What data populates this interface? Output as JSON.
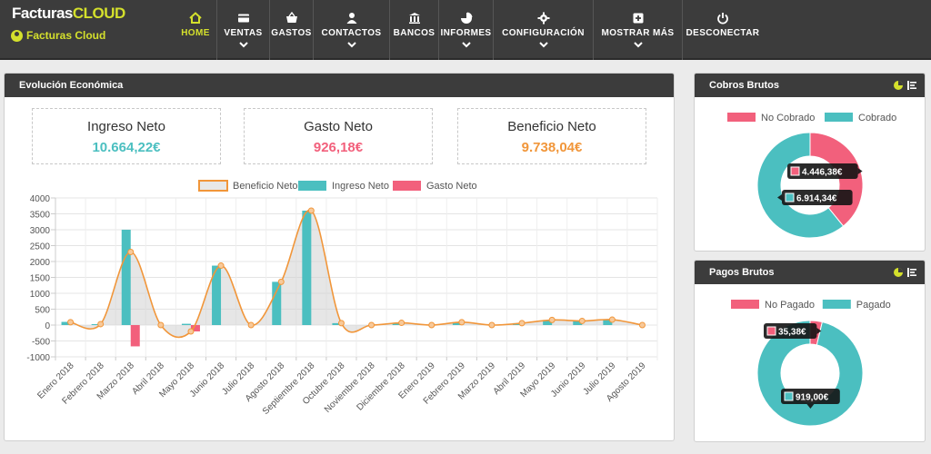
{
  "app": {
    "brand_main": "Facturas",
    "brand_accent": "CLOUD",
    "user_name": "Facturas Cloud"
  },
  "nav": [
    {
      "label": "HOME",
      "icon": "home-icon",
      "active": true,
      "chevron": false
    },
    {
      "label": "VENTAS",
      "icon": "credit-card-icon",
      "chevron": true
    },
    {
      "label": "GASTOS",
      "icon": "basket-icon",
      "chevron": false
    },
    {
      "label": "CONTACTOS",
      "icon": "user-icon",
      "chevron": true
    },
    {
      "label": "BANCOS",
      "icon": "bank-icon",
      "chevron": false
    },
    {
      "label": "INFORMES",
      "icon": "pie-chart-icon",
      "chevron": true
    },
    {
      "label": "CONFIGURACIÓN",
      "icon": "gear-icon",
      "chevron": true
    },
    {
      "label": "MOSTRAR MÁS",
      "icon": "plus-square-icon",
      "chevron": true
    },
    {
      "label": "DESCONECTAR",
      "icon": "power-icon",
      "chevron": false
    }
  ],
  "evolucion": {
    "title": "Evolución Económica",
    "kpis": {
      "ingreso": {
        "label": "Ingreso Neto",
        "value": "10.664,22€",
        "color": "#4bbfc0"
      },
      "gasto": {
        "label": "Gasto Neto",
        "value": "926,18€",
        "color": "#f2607c"
      },
      "beneficio": {
        "label": "Beneficio Neto",
        "value": "9.738,04€",
        "color": "#f1963a"
      }
    }
  },
  "chart_data": [
    {
      "type": "bar",
      "categories": [
        "Enero 2018",
        "Febrero 2018",
        "Marzo 2018",
        "Abril 2018",
        "Mayo 2018",
        "Junio 2018",
        "Julio 2018",
        "Agosto 2018",
        "Septiembre 2018",
        "Octubre 2018",
        "Noviembre 2018",
        "Diciembre 2018",
        "Enero 2019",
        "Febrero 2019",
        "Marzo 2019",
        "Abril 2019",
        "Mayo 2019",
        "Junio 2019",
        "Julio 2019",
        "Agosto 2019"
      ],
      "series": [
        {
          "name": "Beneficio Neto",
          "type": "area-line",
          "color": "#f1963a",
          "values": [
            90,
            30,
            2300,
            0,
            -200,
            1870,
            0,
            1360,
            3600,
            60,
            0,
            70,
            0,
            90,
            0,
            60,
            160,
            130,
            170,
            0
          ]
        },
        {
          "name": "Ingreso Neto",
          "type": "bar",
          "color": "#4bbfc0",
          "values": [
            100,
            30,
            3000,
            0,
            40,
            1870,
            0,
            1360,
            3600,
            60,
            0,
            70,
            0,
            90,
            0,
            60,
            160,
            130,
            170,
            0
          ]
        },
        {
          "name": "Gasto Neto",
          "type": "bar",
          "color": "#f2607c",
          "values": [
            0,
            0,
            -670,
            0,
            -200,
            0,
            0,
            0,
            0,
            0,
            0,
            0,
            0,
            0,
            0,
            0,
            0,
            0,
            0,
            0
          ]
        }
      ],
      "ylim": [
        -1000,
        4000
      ],
      "yticks": [
        "4000",
        "3500",
        "3000",
        "2500",
        "2000",
        "1500",
        "1000",
        "500",
        "0",
        "-500",
        "-1000"
      ],
      "legend_position": "top",
      "grid": true
    },
    {
      "type": "pie",
      "title": "Cobros Brutos",
      "legend": [
        "No Cobrado",
        "Cobrado"
      ],
      "values": [
        4446.38,
        6914.34
      ],
      "labels": [
        "4.446,38€",
        "6.914,34€"
      ],
      "colors": [
        "#f2607c",
        "#4bbfc0"
      ]
    },
    {
      "type": "pie",
      "title": "Pagos Brutos",
      "legend": [
        "No Pagado",
        "Pagado"
      ],
      "values": [
        35.38,
        919.0
      ],
      "labels": [
        "35,38€",
        "919,00€"
      ],
      "colors": [
        "#f2607c",
        "#4bbfc0"
      ]
    }
  ]
}
